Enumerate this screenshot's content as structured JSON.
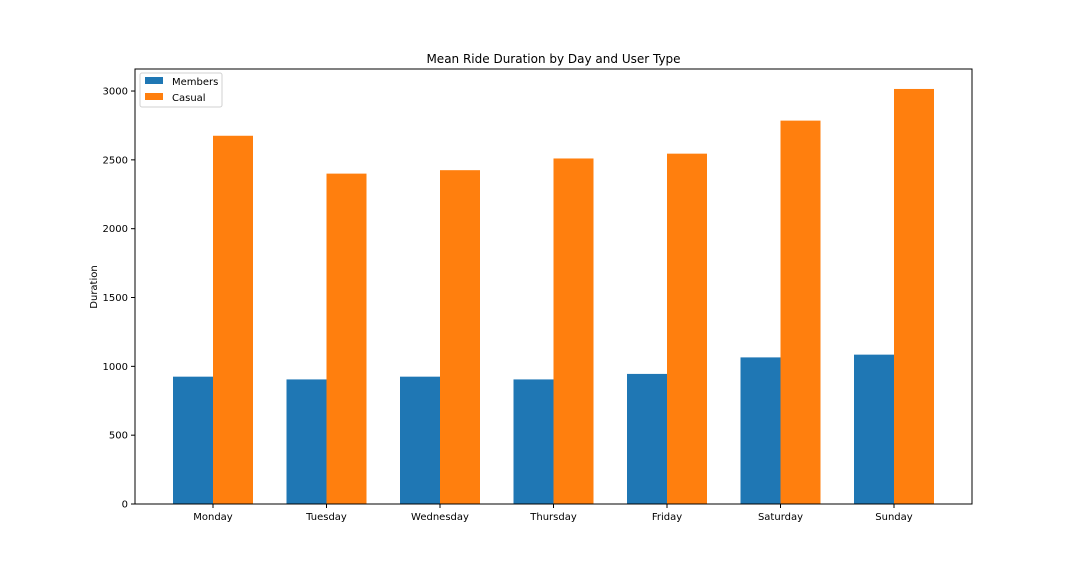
{
  "chart_data": {
    "type": "bar",
    "title": "Mean Ride Duration by Day and User Type",
    "xlabel": "",
    "ylabel": "Duration",
    "categories": [
      "Monday",
      "Tuesday",
      "Wednesday",
      "Thursday",
      "Friday",
      "Saturday",
      "Sunday"
    ],
    "series": [
      {
        "name": "Members",
        "color": "#1f77b4",
        "values": [
          925,
          905,
          925,
          905,
          945,
          1065,
          1085
        ]
      },
      {
        "name": "Casual",
        "color": "#ff7f0e",
        "values": [
          2675,
          2400,
          2425,
          2510,
          2545,
          2785,
          3015
        ]
      }
    ],
    "ylim": [
      0,
      3160
    ],
    "yticks": [
      0,
      500,
      1000,
      1500,
      2000,
      2500,
      3000
    ],
    "grid": false,
    "legend_position": "top-left"
  }
}
